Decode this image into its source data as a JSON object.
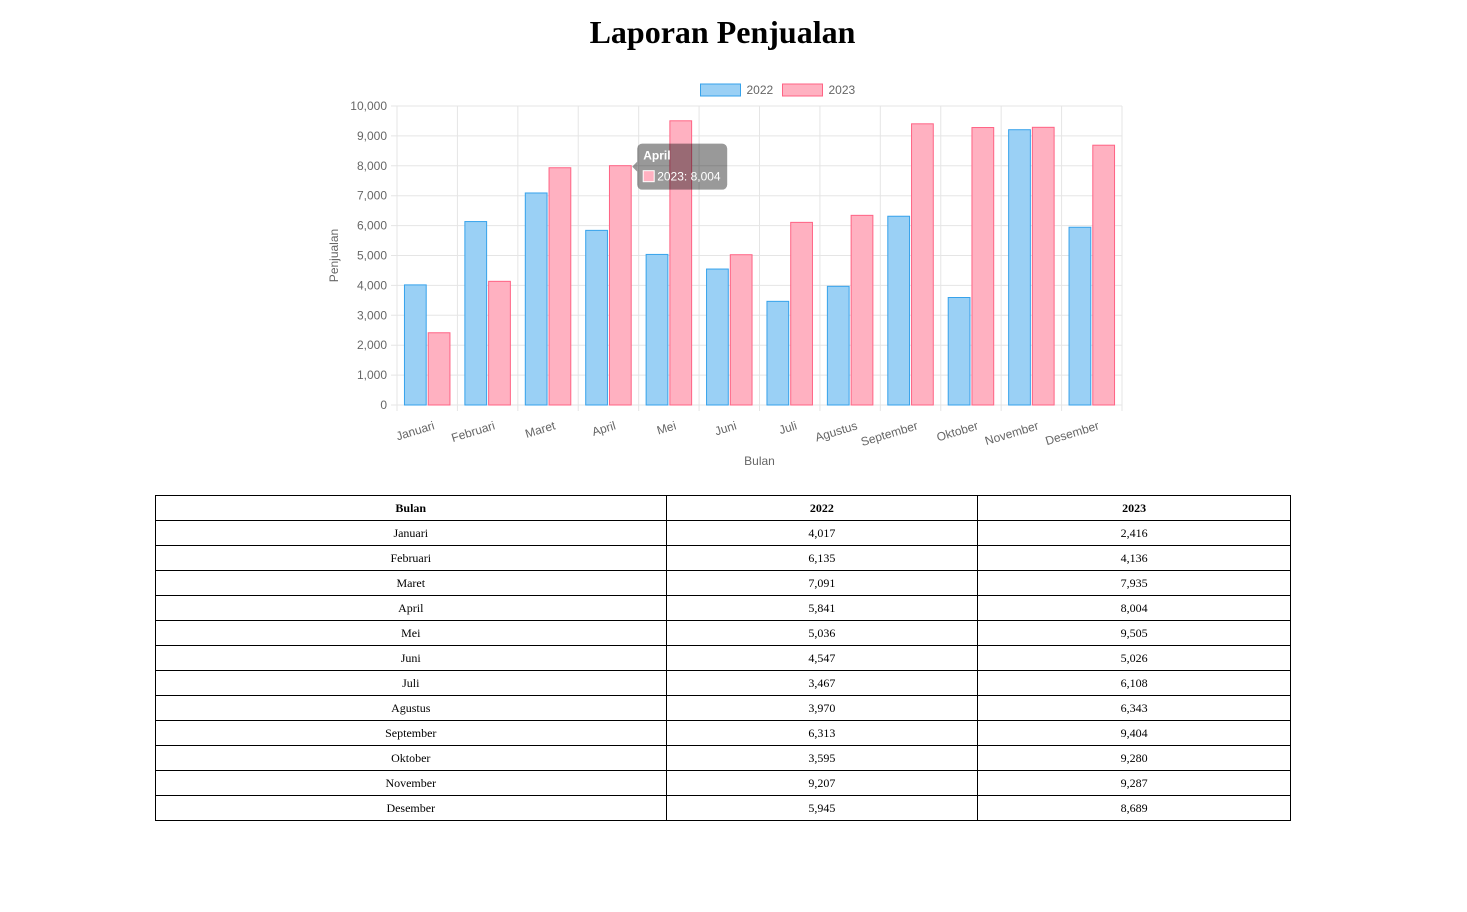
{
  "page": {
    "title": "Laporan Penjualan"
  },
  "chart_data": {
    "type": "bar",
    "categories": [
      "Januari",
      "Februari",
      "Maret",
      "April",
      "Mei",
      "Juni",
      "Juli",
      "Agustus",
      "September",
      "Oktober",
      "November",
      "Desember"
    ],
    "series": [
      {
        "name": "2022",
        "values": [
          4017,
          6135,
          7091,
          5841,
          5036,
          4547,
          3467,
          3970,
          6313,
          3595,
          9207,
          5945
        ],
        "color": "#9ad0f5",
        "border": "#36a2eb"
      },
      {
        "name": "2023",
        "values": [
          2416,
          4136,
          7935,
          8004,
          9505,
          5026,
          6108,
          6343,
          9404,
          9280,
          9287,
          8689
        ],
        "color": "#ffb1c1",
        "border": "#ff6384"
      }
    ],
    "xlabel": "Bulan",
    "ylabel": "Penjualan",
    "ylim": [
      0,
      10000
    ],
    "yticks": [
      "0",
      "1,000",
      "2,000",
      "3,000",
      "4,000",
      "5,000",
      "6,000",
      "7,000",
      "8,000",
      "9,000",
      "10,000"
    ],
    "grid": true,
    "legend_position": "top",
    "tooltip": {
      "title": "April",
      "label": "2023: 8,004",
      "category_index": 3,
      "series_index": 1
    }
  },
  "table": {
    "headers": [
      "Bulan",
      "2022",
      "2023"
    ],
    "rows": [
      [
        "Januari",
        "4,017",
        "2,416"
      ],
      [
        "Februari",
        "6,135",
        "4,136"
      ],
      [
        "Maret",
        "7,091",
        "7,935"
      ],
      [
        "April",
        "5,841",
        "8,004"
      ],
      [
        "Mei",
        "5,036",
        "9,505"
      ],
      [
        "Juni",
        "4,547",
        "5,026"
      ],
      [
        "Juli",
        "3,467",
        "6,108"
      ],
      [
        "Agustus",
        "3,970",
        "6,343"
      ],
      [
        "September",
        "6,313",
        "9,404"
      ],
      [
        "Oktober",
        "3,595",
        "9,280"
      ],
      [
        "November",
        "9,207",
        "9,287"
      ],
      [
        "Desember",
        "5,945",
        "8,689"
      ]
    ]
  }
}
